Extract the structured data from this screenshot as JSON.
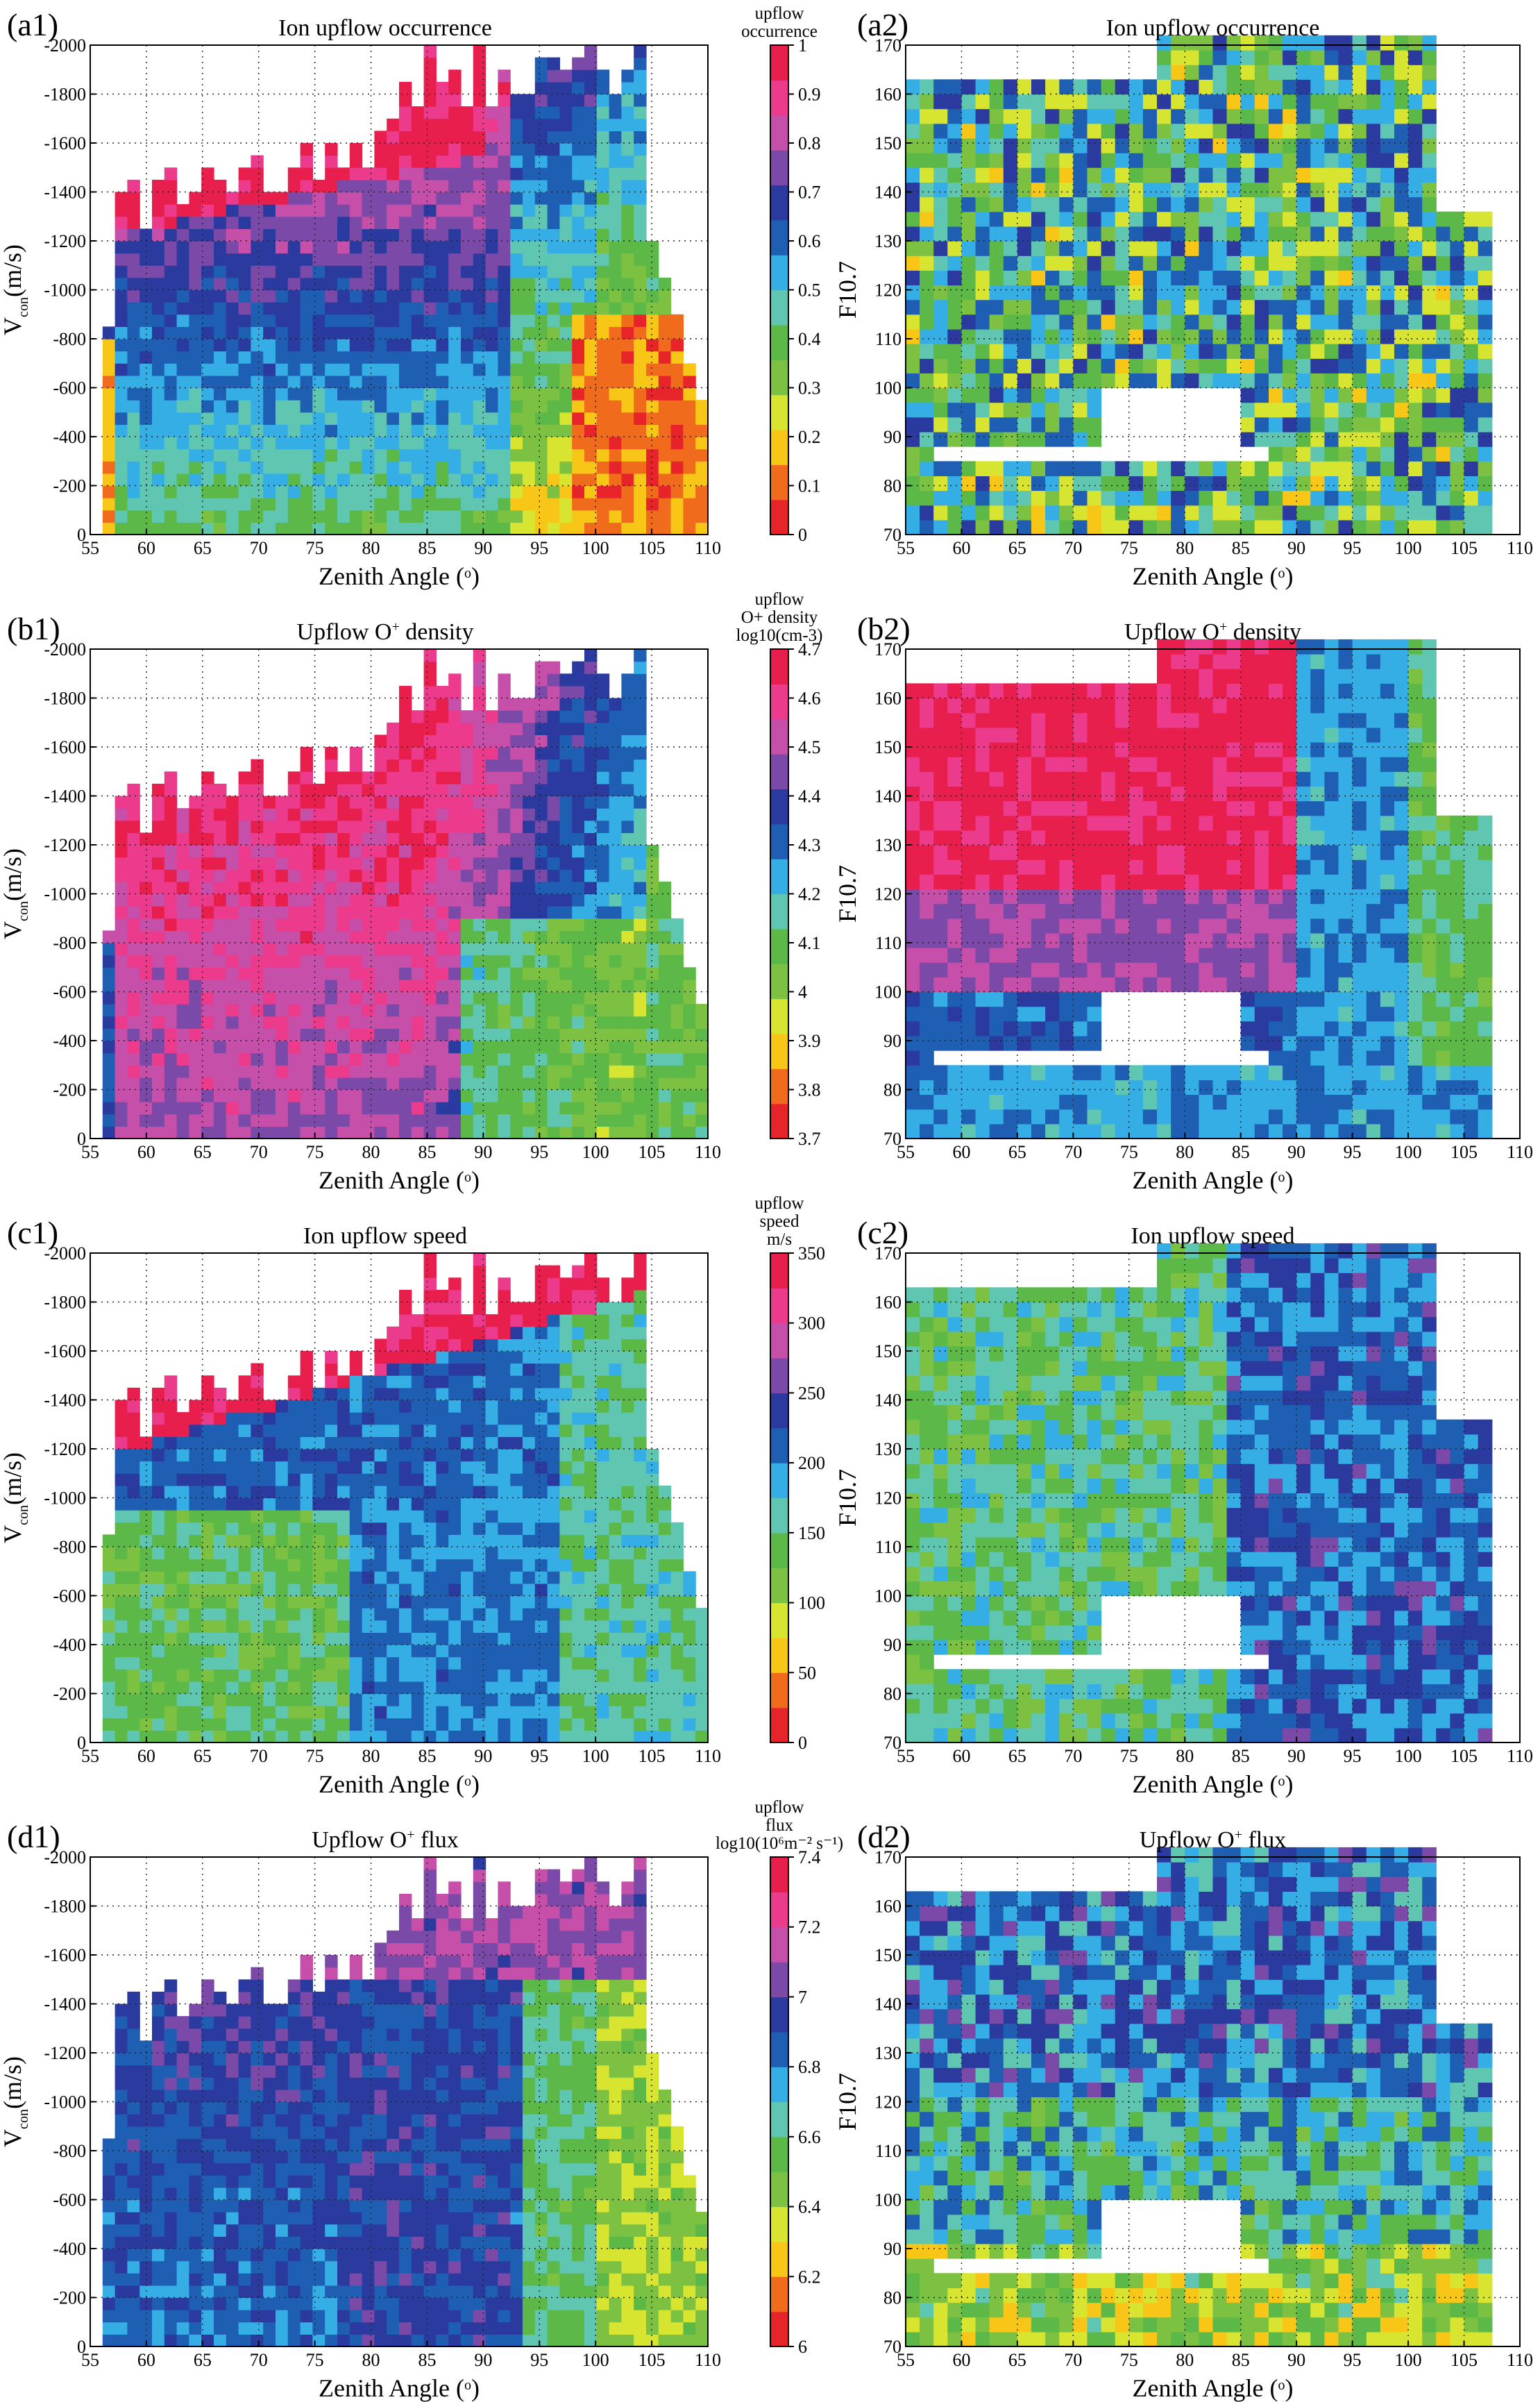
{
  "colors": {
    "colormap": [
      "#e8242b",
      "#f06b1c",
      "#f7c617",
      "#d8e530",
      "#7cc142",
      "#5cb847",
      "#5fc6b2",
      "#35aee6",
      "#1f5fb3",
      "#2a3a9e",
      "#7b4aa8",
      "#c64fa9",
      "#ec3a8c",
      "#e81e4c"
    ],
    "frame": "#000000",
    "background": "#ffffff"
  },
  "chart_data": [
    {
      "id": "a1",
      "type": "heatmap",
      "panel_label": "(a1)",
      "title": "Ion upflow occurrence",
      "xlabel_main": "Zenith Angle (",
      "xlabel_sym": "o",
      "xlabel_close": ")",
      "ylabel_main": "V",
      "ylabel_sub": "con",
      "ylabel_rest": "(m/s)",
      "xlim": [
        55,
        110
      ],
      "ylim": [
        0,
        -2000
      ],
      "xticks": [
        55,
        60,
        65,
        70,
        75,
        80,
        85,
        90,
        95,
        100,
        105,
        110
      ],
      "yticks": [
        0,
        -200,
        -400,
        -600,
        -800,
        -1000,
        -1200,
        -1400,
        -1600,
        -1800,
        -2000
      ],
      "colorbar": {
        "label": [
          "upflow",
          "occurrence"
        ],
        "range": [
          0,
          1
        ],
        "ticks": [
          0,
          0.1,
          0.2,
          0.3,
          0.4,
          0.5,
          0.6,
          0.7,
          0.8,
          0.9,
          1
        ]
      }
    },
    {
      "id": "a2",
      "type": "heatmap",
      "panel_label": "(a2)",
      "title": "Ion upflow occurrence",
      "xlabel_main": "Zenith Angle (",
      "xlabel_sym": "o",
      "xlabel_close": ")",
      "ylabel_main": "F10.7",
      "xlim": [
        55,
        110
      ],
      "ylim": [
        70,
        170
      ],
      "xticks": [
        55,
        60,
        65,
        70,
        75,
        80,
        85,
        90,
        95,
        100,
        105,
        110
      ],
      "yticks": [
        70,
        80,
        90,
        100,
        110,
        120,
        130,
        140,
        150,
        160,
        170
      ]
    },
    {
      "id": "b1",
      "type": "heatmap",
      "panel_label": "(b1)",
      "title_main": "Upflow O",
      "title_sup": "+",
      "title_rest": " density",
      "xlabel_main": "Zenith Angle (",
      "xlabel_sym": "o",
      "xlabel_close": ")",
      "ylabel_main": "V",
      "ylabel_sub": "con",
      "ylabel_rest": "(m/s)",
      "xlim": [
        55,
        110
      ],
      "ylim": [
        0,
        -2000
      ],
      "xticks": [
        55,
        60,
        65,
        70,
        75,
        80,
        85,
        90,
        95,
        100,
        105,
        110
      ],
      "yticks": [
        0,
        -200,
        -400,
        -600,
        -800,
        -1000,
        -1200,
        -1400,
        -1600,
        -1800,
        -2000
      ],
      "colorbar": {
        "label": [
          "upflow",
          "O+ density",
          "log10(cm-3)"
        ],
        "range": [
          3.7,
          4.7
        ],
        "ticks": [
          3.7,
          3.8,
          3.9,
          4,
          4.1,
          4.2,
          4.3,
          4.4,
          4.5,
          4.6,
          4.7
        ]
      }
    },
    {
      "id": "b2",
      "type": "heatmap",
      "panel_label": "(b2)",
      "title_main": "Upflow O",
      "title_sup": "+",
      "title_rest": " density",
      "xlabel_main": "Zenith Angle (",
      "xlabel_sym": "o",
      "xlabel_close": ")",
      "ylabel_main": "F10.7",
      "xlim": [
        55,
        110
      ],
      "ylim": [
        70,
        170
      ],
      "xticks": [
        55,
        60,
        65,
        70,
        75,
        80,
        85,
        90,
        95,
        100,
        105,
        110
      ],
      "yticks": [
        70,
        80,
        90,
        100,
        110,
        120,
        130,
        140,
        150,
        160,
        170
      ]
    },
    {
      "id": "c1",
      "type": "heatmap",
      "panel_label": "(c1)",
      "title": "Ion upflow speed",
      "xlabel_main": "Zenith Angle (",
      "xlabel_sym": "o",
      "xlabel_close": ")",
      "ylabel_main": "V",
      "ylabel_sub": "con",
      "ylabel_rest": "(m/s)",
      "xlim": [
        55,
        110
      ],
      "ylim": [
        0,
        -2000
      ],
      "xticks": [
        55,
        60,
        65,
        70,
        75,
        80,
        85,
        90,
        95,
        100,
        105,
        110
      ],
      "yticks": [
        0,
        -200,
        -400,
        -600,
        -800,
        -1000,
        -1200,
        -1400,
        -1600,
        -1800,
        -2000
      ],
      "colorbar": {
        "label": [
          "upflow",
          "speed",
          "m/s"
        ],
        "range": [
          0,
          350
        ],
        "ticks": [
          0,
          50,
          100,
          150,
          200,
          250,
          300,
          350
        ]
      }
    },
    {
      "id": "c2",
      "type": "heatmap",
      "panel_label": "(c2)",
      "title": "Ion upflow speed",
      "xlabel_main": "Zenith Angle (",
      "xlabel_sym": "o",
      "xlabel_close": ")",
      "ylabel_main": "F10.7",
      "xlim": [
        55,
        110
      ],
      "ylim": [
        70,
        170
      ],
      "xticks": [
        55,
        60,
        65,
        70,
        75,
        80,
        85,
        90,
        95,
        100,
        105,
        110
      ],
      "yticks": [
        70,
        80,
        90,
        100,
        110,
        120,
        130,
        140,
        150,
        160,
        170
      ]
    },
    {
      "id": "d1",
      "type": "heatmap",
      "panel_label": "(d1)",
      "title_main": "Upflow O",
      "title_sup": "+",
      "title_rest": " flux",
      "xlabel_main": "Zenith Angle (",
      "xlabel_sym": "o",
      "xlabel_close": ")",
      "ylabel_main": "V",
      "ylabel_sub": "con",
      "ylabel_rest": "(m/s)",
      "xlim": [
        55,
        110
      ],
      "ylim": [
        0,
        -2000
      ],
      "xticks": [
        55,
        60,
        65,
        70,
        75,
        80,
        85,
        90,
        95,
        100,
        105,
        110
      ],
      "yticks": [
        0,
        -200,
        -400,
        -600,
        -800,
        -1000,
        -1200,
        -1400,
        -1600,
        -1800,
        -2000
      ],
      "colorbar": {
        "label": [
          "upflow",
          "flux",
          "log10(10⁶m⁻² s⁻¹)"
        ],
        "range": [
          6,
          7.4
        ],
        "ticks": [
          6,
          6.2,
          6.4,
          6.6,
          6.8,
          7,
          7.2,
          7.4
        ]
      }
    },
    {
      "id": "d2",
      "type": "heatmap",
      "panel_label": "(d2)",
      "title_main": "Upflow O",
      "title_sup": "+",
      "title_rest": " flux",
      "xlabel_main": "Zenith Angle (",
      "xlabel_sym": "o",
      "xlabel_close": ")",
      "ylabel_main": "F10.7",
      "xlim": [
        55,
        110
      ],
      "ylim": [
        70,
        170
      ],
      "xticks": [
        55,
        60,
        65,
        70,
        75,
        80,
        85,
        90,
        95,
        100,
        105,
        110
      ],
      "yticks": [
        70,
        80,
        90,
        100,
        110,
        120,
        130,
        140,
        150,
        160,
        170
      ]
    }
  ]
}
